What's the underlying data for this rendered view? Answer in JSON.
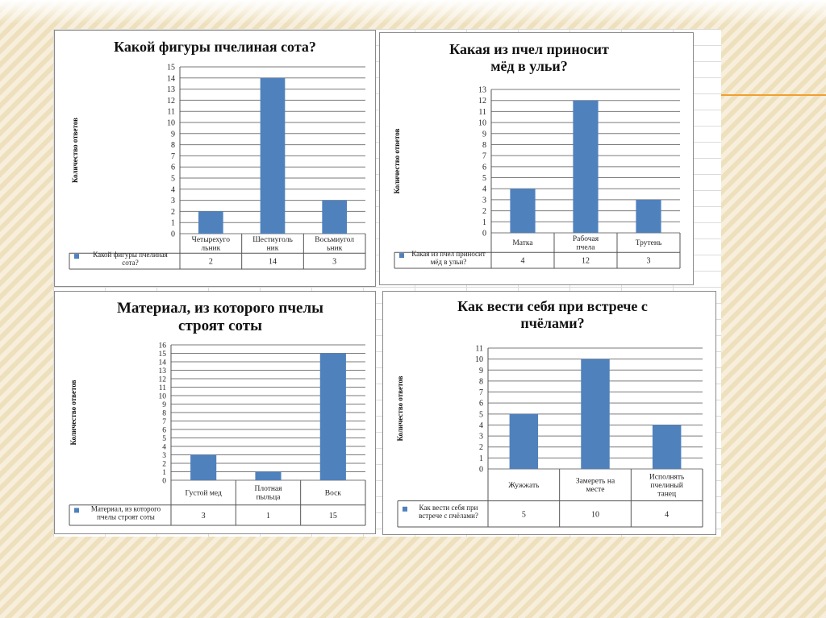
{
  "charts": [
    {
      "type": "bar",
      "title": "Какой фигуры пчелиная сота?",
      "ylabel": "Количество ответов",
      "ylim": [
        0,
        15
      ],
      "categories": [
        "Четырехуго льник",
        "Шестиуголь ник",
        "Восьмиугол ьник"
      ],
      "series": [
        {
          "name": "Какой фигуры пчелиная сота?",
          "values": [
            2,
            14,
            3
          ]
        }
      ],
      "bar_color": "#4f81bd"
    },
    {
      "type": "bar",
      "title": "Какая из пчел приносит мёд в ульи?",
      "ylabel": "Количество ответов",
      "ylim": [
        0,
        13
      ],
      "categories": [
        "Матка",
        "Рабочая пчела",
        "Трутень"
      ],
      "series": [
        {
          "name": "Какая из пчел приносит мёд в ульи?",
          "values": [
            4,
            12,
            3
          ]
        }
      ],
      "bar_color": "#4f81bd"
    },
    {
      "type": "bar",
      "title": "Материал, из которого пчелы строят соты",
      "ylabel": "Количество ответов",
      "ylim": [
        0,
        16
      ],
      "categories": [
        "Густой мед",
        "Плотная пыльца",
        "Воск"
      ],
      "series": [
        {
          "name": "Материал, из которого пчелы строят соты",
          "values": [
            3,
            1,
            15
          ]
        }
      ],
      "bar_color": "#4f81bd"
    },
    {
      "type": "bar",
      "title": "Как вести себя при встрече с пчёлами?",
      "ylabel": "Количество ответов",
      "ylim": [
        0,
        11
      ],
      "categories": [
        "Жужжать",
        "Замереть на месте",
        "Исполнять пчелиный танец"
      ],
      "series": [
        {
          "name": "Как вести себя при встрече с пчёлами?",
          "values": [
            5,
            10,
            4
          ]
        }
      ],
      "bar_color": "#4f81bd"
    }
  ]
}
